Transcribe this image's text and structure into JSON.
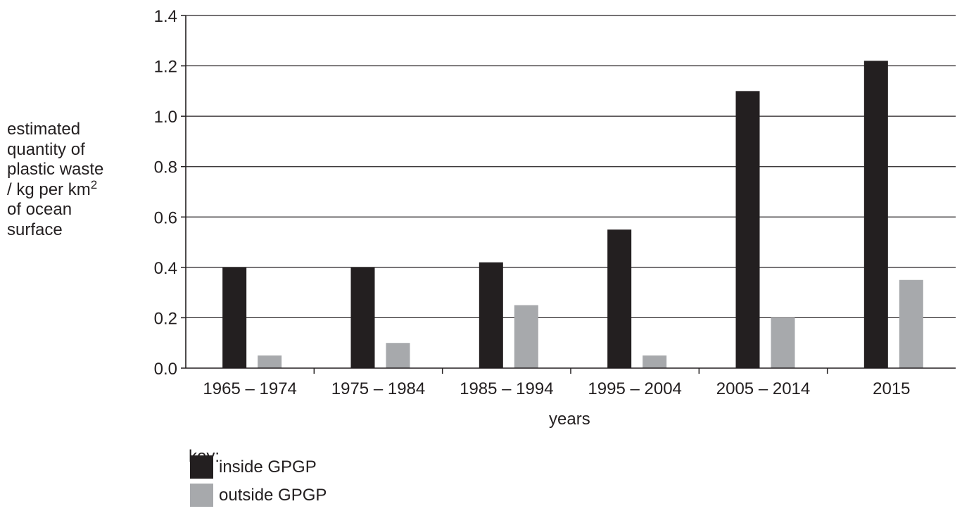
{
  "chart_data": {
    "type": "bar",
    "categories": [
      "1965 – 1974",
      "1975 – 1984",
      "1985 – 1994",
      "1995 – 2004",
      "2005 – 2014",
      "2015"
    ],
    "series": [
      {
        "name": "inside GPGP",
        "color": "#231f20",
        "values": [
          0.4,
          0.4,
          0.42,
          0.55,
          1.1,
          1.22
        ]
      },
      {
        "name": "outside GPGP",
        "color": "#a7a9ac",
        "values": [
          0.05,
          0.1,
          0.25,
          0.05,
          0.2,
          0.35
        ]
      }
    ],
    "ylim": [
      0,
      1.4
    ],
    "yticks": [
      "0.0",
      "0.2",
      "0.4",
      "0.6",
      "0.8",
      "1.0",
      "1.2",
      "1.4"
    ],
    "grid": true,
    "xlabel": "years",
    "ylabel": {
      "lines": [
        "estimated",
        "quantity of",
        "plastic waste",
        "/ kg per km",
        "of ocean",
        "surface"
      ],
      "superscript": "2"
    },
    "legend": {
      "title": "key:",
      "placement": "bottom-left"
    }
  }
}
